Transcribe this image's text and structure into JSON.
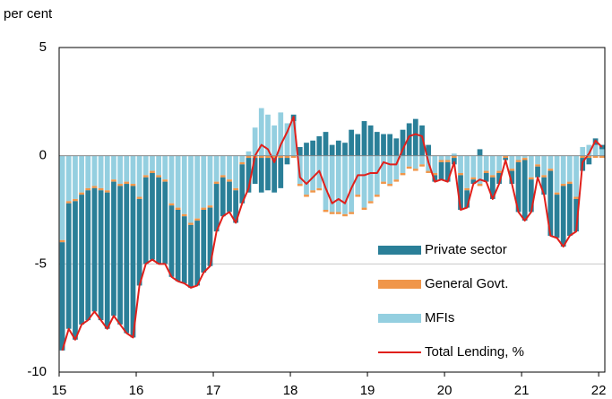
{
  "chart_data": {
    "type": "bar_line",
    "y_axis_label": "per cent",
    "x": [
      15,
      15.083,
      15.167,
      15.25,
      15.333,
      15.417,
      15.5,
      15.583,
      15.667,
      15.75,
      15.833,
      15.917,
      16,
      16.083,
      16.167,
      16.25,
      16.333,
      16.417,
      16.5,
      16.583,
      16.667,
      16.75,
      16.833,
      16.917,
      17,
      17.083,
      17.167,
      17.25,
      17.333,
      17.417,
      17.5,
      17.583,
      17.667,
      17.75,
      17.833,
      17.917,
      18,
      18.083,
      18.167,
      18.25,
      18.333,
      18.417,
      18.5,
      18.583,
      18.667,
      18.75,
      18.833,
      18.917,
      19,
      19.083,
      19.167,
      19.25,
      19.333,
      19.417,
      19.5,
      19.583,
      19.667,
      19.75,
      19.833,
      19.917,
      20,
      20.083,
      20.167,
      20.25,
      20.333,
      20.417,
      20.5,
      20.583,
      20.667,
      20.75,
      20.833,
      20.917,
      21,
      21.083,
      21.167,
      21.25,
      21.333,
      21.417,
      21.5,
      21.583,
      21.667,
      21.75,
      21.833,
      21.917,
      22
    ],
    "series": [
      {
        "name": "Private sector",
        "color": "#2a7f98",
        "kind": "bar",
        "values": [
          -5.0,
          -5.8,
          -6.4,
          -6.0,
          -6.0,
          -5.7,
          -6.0,
          -6.3,
          -6.2,
          -6.4,
          -6.9,
          -7.0,
          -4.0,
          -4.0,
          -4.0,
          -4.0,
          -3.8,
          -3.3,
          -3.3,
          -3.1,
          -2.9,
          -3.0,
          -2.9,
          -2.7,
          -2.2,
          -1.8,
          -1.4,
          -1.5,
          -1.8,
          -1.6,
          -1.2,
          -1.6,
          -1.5,
          -1.6,
          -1.4,
          -0.3,
          0.3,
          0.4,
          0.6,
          0.7,
          0.9,
          1.1,
          0.5,
          0.7,
          0.6,
          1.2,
          1.0,
          1.6,
          1.4,
          1.1,
          1.0,
          1.0,
          0.8,
          1.2,
          1.5,
          1.7,
          1.4,
          0.5,
          -0.3,
          -0.8,
          -0.9,
          -0.3,
          -1.6,
          -0.8,
          -0.2,
          0.3,
          -0.4,
          -1.0,
          -0.5,
          -0.1,
          -0.6,
          -2.3,
          -2.8,
          -1.5,
          -0.5,
          -0.8,
          -3.0,
          -2.0,
          -2.8,
          -2.4,
          -1.5,
          -0.6,
          -0.3,
          0.3,
          0.2
        ]
      },
      {
        "name": "General Govt.",
        "color": "#f0964a",
        "kind": "bar",
        "values": [
          -0.1,
          -0.1,
          -0.1,
          -0.1,
          -0.1,
          -0.1,
          -0.1,
          -0.1,
          -0.1,
          -0.1,
          -0.1,
          -0.1,
          -0.1,
          -0.1,
          -0.1,
          -0.1,
          -0.1,
          -0.1,
          -0.1,
          -0.1,
          -0.1,
          -0.1,
          -0.1,
          -0.1,
          -0.1,
          -0.1,
          -0.1,
          -0.1,
          -0.1,
          -0.1,
          -0.1,
          -0.1,
          -0.1,
          -0.1,
          -0.1,
          -0.1,
          -0.1,
          -0.1,
          -0.1,
          -0.1,
          -0.1,
          -0.1,
          -0.1,
          -0.1,
          -0.1,
          -0.1,
          -0.1,
          -0.1,
          -0.1,
          -0.1,
          -0.1,
          -0.1,
          -0.1,
          -0.1,
          -0.1,
          -0.1,
          -0.1,
          -0.1,
          -0.1,
          -0.1,
          -0.1,
          -0.1,
          -0.1,
          -0.1,
          -0.1,
          -0.1,
          -0.1,
          -0.1,
          -0.1,
          -0.1,
          -0.1,
          -0.1,
          -0.1,
          -0.1,
          -0.1,
          -0.1,
          -0.1,
          -0.1,
          -0.1,
          -0.1,
          -0.1,
          -0.1,
          -0.1,
          -0.1,
          -0.1
        ]
      },
      {
        "name": "MFIs",
        "color": "#94cfe0",
        "kind": "bar",
        "values": [
          -3.9,
          -2.1,
          -2.0,
          -1.7,
          -1.5,
          -1.4,
          -1.5,
          -1.6,
          -1.1,
          -1.3,
          -1.2,
          -1.3,
          -1.9,
          -0.9,
          -0.7,
          -0.9,
          -1.1,
          -2.2,
          -2.4,
          -2.7,
          -3.1,
          -2.9,
          -2.4,
          -2.3,
          -1.2,
          -0.9,
          -1.1,
          -1.5,
          -0.3,
          0.2,
          1.3,
          2.2,
          1.9,
          1.4,
          2.0,
          1.5,
          1.6,
          -1.3,
          -1.8,
          -1.6,
          -1.5,
          -2.5,
          -2.6,
          -2.6,
          -2.7,
          -2.6,
          -1.8,
          -2.4,
          -2.1,
          -1.8,
          -1.2,
          -1.3,
          -1.1,
          -0.8,
          -0.5,
          -0.6,
          -0.4,
          -0.7,
          -0.8,
          -0.2,
          -0.2,
          0.1,
          -0.8,
          -1.5,
          -1.0,
          -1.3,
          -0.7,
          -0.9,
          -0.7,
          0.0,
          -0.6,
          -0.2,
          -0.1,
          -1.0,
          -0.4,
          -0.9,
          -0.6,
          -1.7,
          -1.3,
          -1.2,
          -1.9,
          0.4,
          0.5,
          0.5,
          0.3
        ]
      },
      {
        "name": "Total Lending, %",
        "color": "#e0201b",
        "kind": "line",
        "values": [
          -9,
          -8,
          -8.5,
          -7.8,
          -7.6,
          -7.2,
          -7.6,
          -8,
          -7.4,
          -7.8,
          -8.2,
          -8.4,
          -6,
          -5,
          -4.8,
          -5,
          -5,
          -5.6,
          -5.8,
          -5.9,
          -6.1,
          -6,
          -5.4,
          -5.1,
          -3.5,
          -2.8,
          -2.6,
          -3.1,
          -2.2,
          -1.5,
          0,
          0.5,
          0.3,
          -0.3,
          0.5,
          1.1,
          1.8,
          -1,
          -1.3,
          -1,
          -0.7,
          -1.5,
          -2.2,
          -2,
          -2.2,
          -1.5,
          -0.9,
          -0.9,
          -0.8,
          -0.8,
          -0.3,
          -0.4,
          -0.4,
          0.3,
          0.9,
          1.0,
          0.9,
          -0.3,
          -1.2,
          -1.1,
          -1.2,
          -0.3,
          -2.5,
          -2.4,
          -1.3,
          -1.1,
          -1.2,
          -2,
          -1.3,
          -0.2,
          -1.3,
          -2.6,
          -3,
          -2.6,
          -1.0,
          -1.8,
          -3.7,
          -3.8,
          -4.2,
          -3.7,
          -3.5,
          -0.3,
          0.1,
          0.7,
          0.4
        ]
      }
    ],
    "xlim": [
      15,
      22.08
    ],
    "xticks": [
      15,
      16,
      17,
      18,
      19,
      20,
      21,
      22
    ],
    "ylim": [
      -10,
      5
    ],
    "yticks": [
      -10,
      -5,
      0,
      5
    ],
    "grid": true,
    "legend": "lower right"
  }
}
